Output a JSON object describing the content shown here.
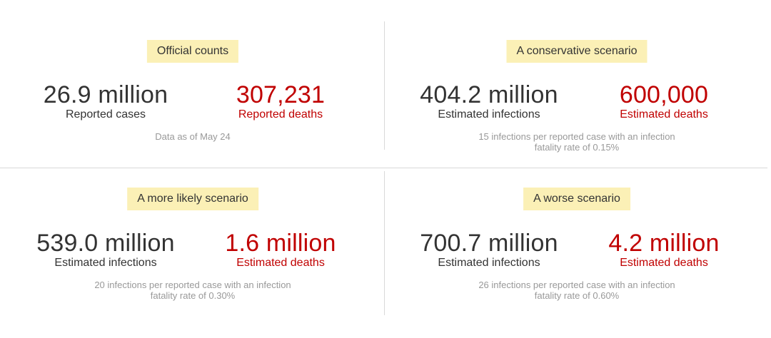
{
  "panels": [
    {
      "label": "Official counts",
      "left_value": "26.9 million",
      "left_caption": "Reported cases",
      "right_value": "307,231",
      "right_caption": "Reported deaths",
      "note": "Data as of May 24"
    },
    {
      "label": "A conservative scenario",
      "left_value": "404.2 million",
      "left_caption": "Estimated infections",
      "right_value": "600,000",
      "right_caption": "Estimated deaths",
      "note": "15 infections per reported case with an infection fatality rate of 0.15%"
    },
    {
      "label": "A more likely scenario",
      "left_value": "539.0 million",
      "left_caption": "Estimated infections",
      "right_value": "1.6 million",
      "right_caption": "Estimated deaths",
      "note": "20 infections per reported case with an infection fatality rate of 0.30%"
    },
    {
      "label": "A worse scenario",
      "left_value": "700.7 million",
      "left_caption": "Estimated infections",
      "right_value": "4.2 million",
      "right_caption": "Estimated deaths",
      "note": "26 infections per reported case with an infection fatality rate of 0.60%"
    }
  ],
  "colors": {
    "label_background": "#fbf0b6",
    "value_gray": "#333333",
    "value_red": "#c00000",
    "note_gray": "#999999",
    "divider": "#d9d9d9"
  }
}
